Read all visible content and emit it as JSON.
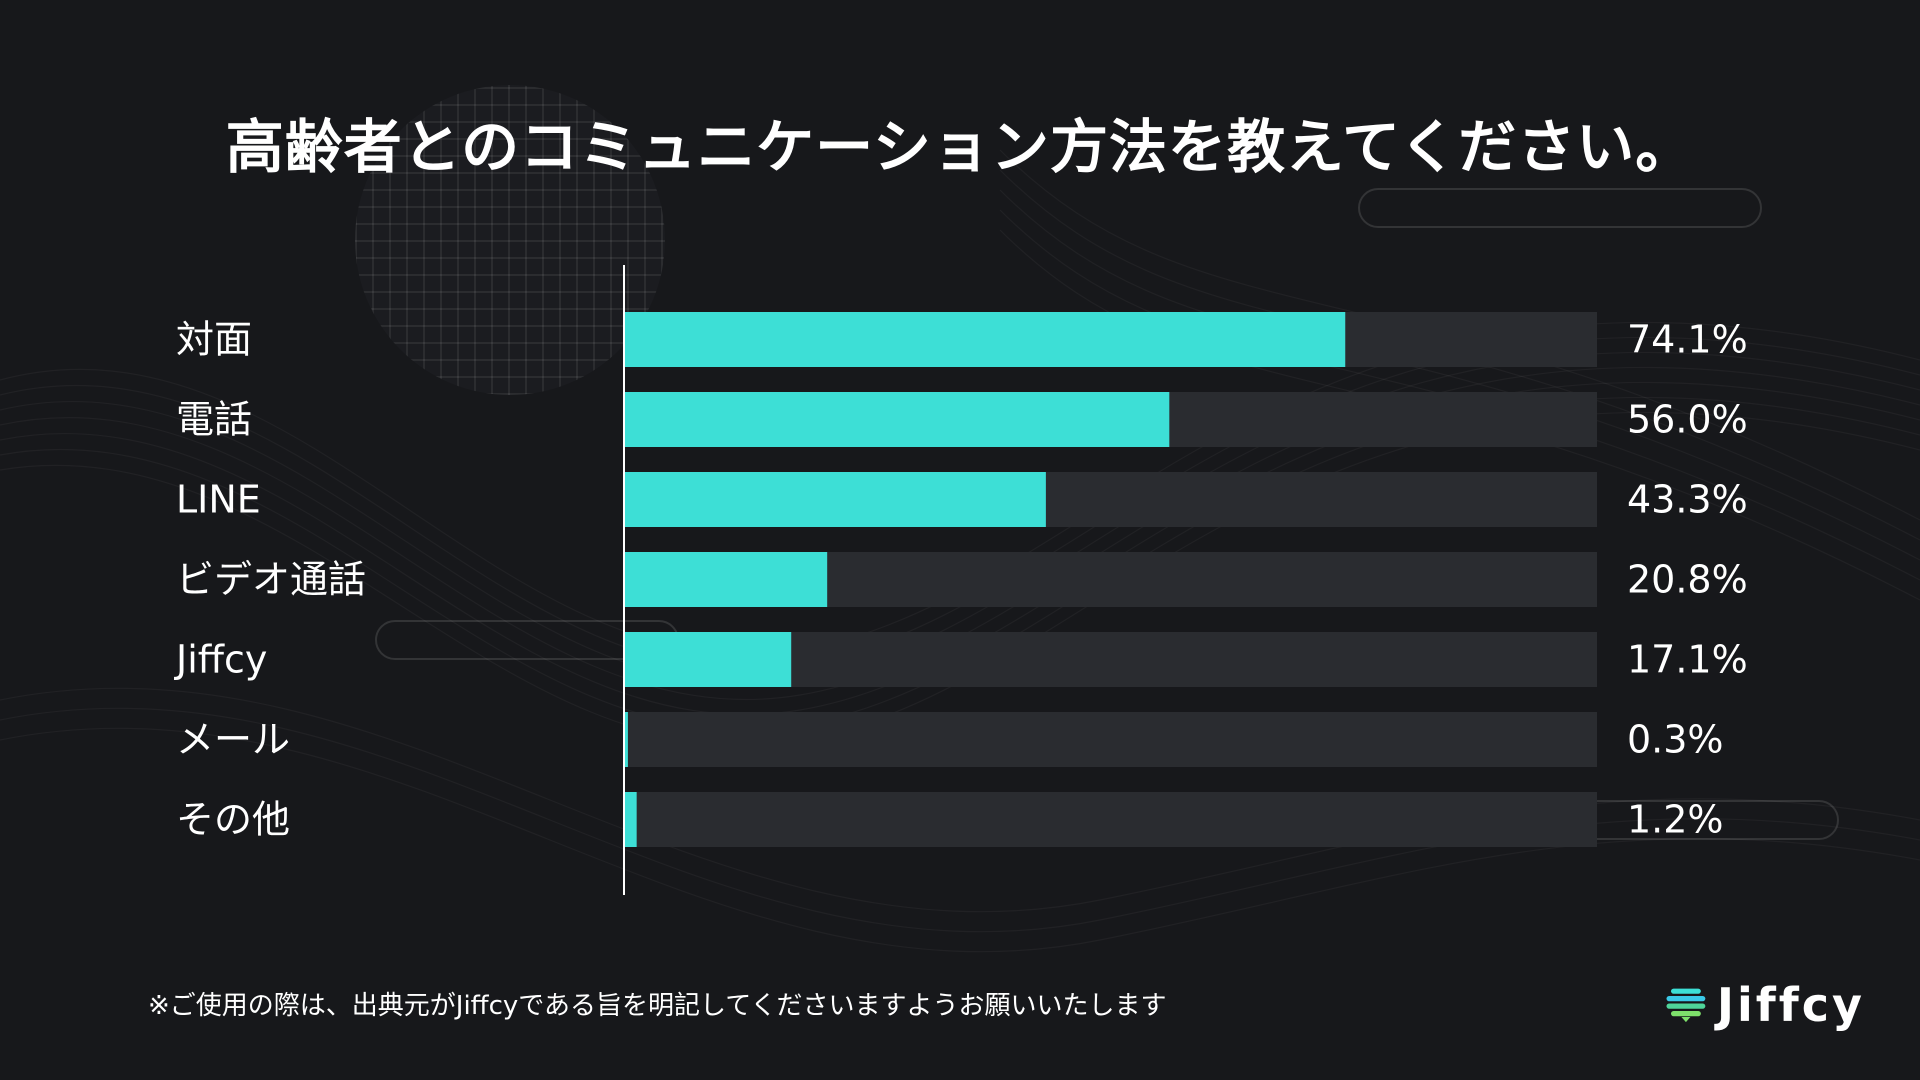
{
  "title": "高齢者とのコミュニケーション方法を教えてください。",
  "footnote": "※ご使用の際は、出典元がJiffcyである旨を明記してくださいますようお願いいたします",
  "logo": {
    "text": "Jiffcy",
    "icon": "jiffcy-logo-icon"
  },
  "colors": {
    "background": "#17181b",
    "bar_fill": "#3ddfd6",
    "bar_track": "#2a2c30",
    "text": "#ffffff"
  },
  "chart_data": {
    "type": "bar",
    "orientation": "horizontal",
    "title": "高齢者とのコミュニケーション方法を教えてください。",
    "categories": [
      "対面",
      "電話",
      "LINE",
      "ビデオ通話",
      "Jiffcy",
      "メール",
      "その他"
    ],
    "values": [
      74.1,
      56.0,
      43.3,
      20.8,
      17.1,
      0.3,
      1.2
    ],
    "value_labels": [
      "74.1%",
      "56.0%",
      "43.3%",
      "20.8%",
      "17.1%",
      "0.3%",
      "1.2%"
    ],
    "xlim": [
      0,
      100
    ],
    "unit": "%",
    "grid": false,
    "legend": "none"
  }
}
